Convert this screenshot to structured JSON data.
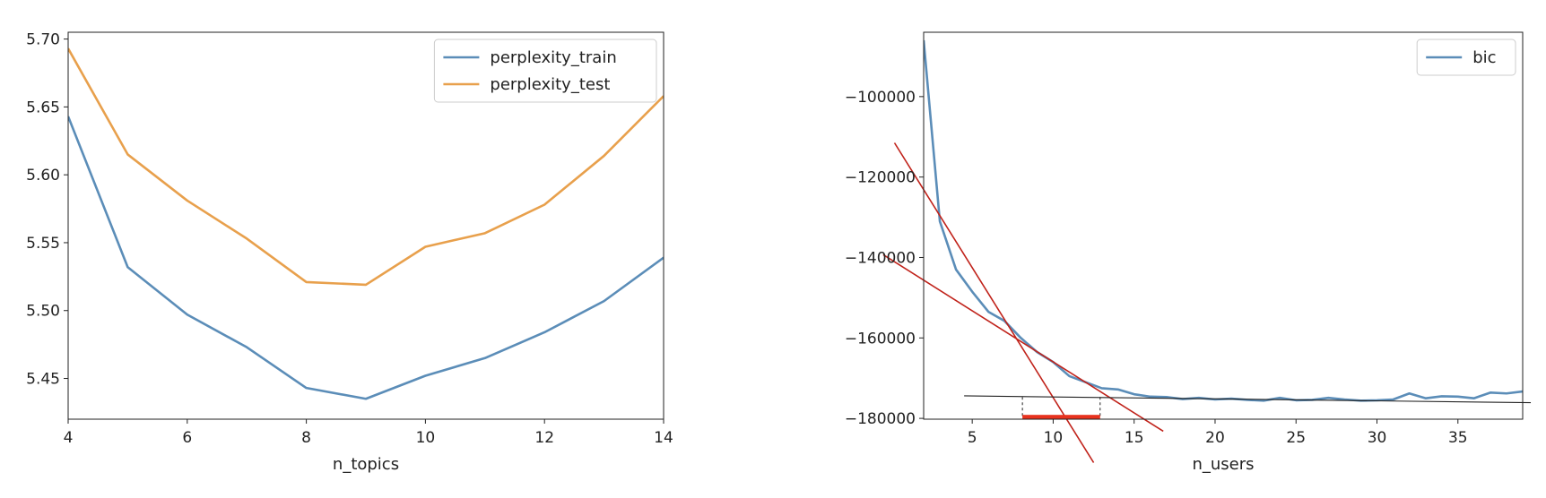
{
  "chart_data": [
    {
      "type": "line",
      "xlabel": "n_topics",
      "ylabel": "",
      "xlim": [
        4,
        14
      ],
      "ylim": [
        5.42,
        5.705
      ],
      "xticks": [
        4,
        6,
        8,
        10,
        12,
        14
      ],
      "yticks": [
        5.45,
        5.5,
        5.55,
        5.6,
        5.65,
        5.7
      ],
      "ytick_labels": [
        "5.45",
        "5.50",
        "5.55",
        "5.60",
        "5.65",
        "5.70"
      ],
      "legend_position": "top-right",
      "grid": false,
      "x": [
        4,
        5,
        6,
        7,
        8,
        9,
        10,
        11,
        12,
        13,
        14
      ],
      "series": [
        {
          "name": "perplexity_train",
          "color": "#5b8db8",
          "values": [
            5.643,
            5.532,
            5.497,
            5.473,
            5.443,
            5.435,
            5.452,
            5.465,
            5.484,
            5.507,
            5.539
          ]
        },
        {
          "name": "perplexity_test",
          "color": "#e8a04c",
          "values": [
            5.693,
            5.615,
            5.581,
            5.553,
            5.521,
            5.519,
            5.547,
            5.557,
            5.578,
            5.614,
            5.658
          ]
        }
      ]
    },
    {
      "type": "line",
      "xlabel": "n_users",
      "ylabel": "",
      "xlim": [
        2,
        39
      ],
      "ylim": [
        -180200,
        -84000
      ],
      "xticks": [
        5,
        10,
        15,
        20,
        25,
        30,
        35
      ],
      "yticks": [
        -180000,
        -160000,
        -140000,
        -120000,
        -100000
      ],
      "ytick_labels": [
        "−180000",
        "−160000",
        "−140000",
        "−120000",
        "−100000"
      ],
      "legend_position": "top-right",
      "grid": false,
      "x": [
        2,
        3,
        4,
        5,
        6,
        7,
        8,
        9,
        10,
        11,
        12,
        13,
        14,
        15,
        16,
        17,
        18,
        19,
        20,
        21,
        22,
        23,
        24,
        25,
        26,
        27,
        28,
        29,
        30,
        31,
        32,
        33,
        34,
        35,
        36,
        37,
        38,
        39
      ],
      "series": [
        {
          "name": "bic",
          "color": "#5b8db8",
          "values": [
            -86000,
            -131000,
            -143000,
            -148500,
            -153500,
            -155800,
            -160000,
            -163500,
            -166000,
            -169500,
            -171000,
            -172500,
            -172800,
            -174000,
            -174600,
            -174700,
            -175200,
            -174900,
            -175300,
            -175100,
            -175400,
            -175600,
            -174900,
            -175500,
            -175400,
            -174900,
            -175300,
            -175600,
            -175500,
            -175300,
            -173800,
            -175000,
            -174500,
            -174600,
            -175000,
            -173600,
            -173800,
            -173300
          ]
        }
      ],
      "annotations": {
        "red_line_color": "#c0221a",
        "guide_line_color": "#222222",
        "red_lines": [
          {
            "from": [
              0.2,
              -111500
            ],
            "to": [
              12.5,
              -191000
            ]
          },
          {
            "from": [
              -0.5,
              -139300
            ],
            "to": [
              16.8,
              -183200
            ]
          }
        ],
        "flat_line": {
          "from": [
            4.5,
            -174400
          ],
          "to": [
            39.5,
            -176100
          ]
        },
        "bracket": {
          "x0": 8.1,
          "x1": 12.9,
          "y_top": -174700,
          "y_bottom": -180000
        },
        "highlight": {
          "x0": 8.1,
          "x1": 12.9,
          "y": -179800
        }
      }
    }
  ]
}
